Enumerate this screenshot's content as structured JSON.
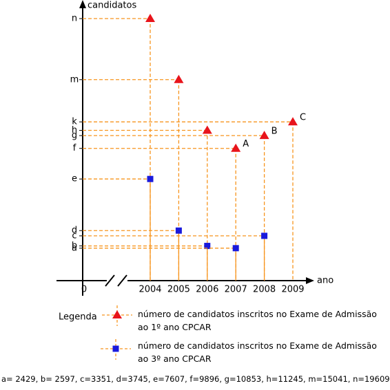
{
  "chart_data": {
    "type": "scatter",
    "y_label": "candidatos",
    "x_label": "ano",
    "origin_label": "0",
    "categories": [
      "2004",
      "2005",
      "2006",
      "2007",
      "2008",
      "2009"
    ],
    "ylim": [
      0,
      21000
    ],
    "yticks": [
      {
        "value": 2429,
        "label": "a"
      },
      {
        "value": 2597,
        "label": "b"
      },
      {
        "value": 3351,
        "label": "c"
      },
      {
        "value": 3745,
        "label": "d"
      },
      {
        "value": 7607,
        "label": "e"
      },
      {
        "value": 9896,
        "label": "f"
      },
      {
        "value": 10853,
        "label": "g"
      },
      {
        "value": 11245,
        "label": "h"
      },
      {
        "value": 11880,
        "label": "k"
      },
      {
        "value": 15041,
        "label": "m"
      },
      {
        "value": 19609,
        "label": "n"
      }
    ],
    "series": [
      {
        "name": "número de candidatos inscritos no Exame de Admissão ao 1º ano CPCAR",
        "marker": "triangle",
        "color": "#e8141b",
        "values": [
          19609,
          15041,
          11245,
          9896,
          10853,
          11880
        ]
      },
      {
        "name": "número de candidatos inscritos no Exame de Admissão ao 3º ano CPCAR",
        "marker": "square",
        "color": "#1a1adc",
        "values": [
          7607,
          3745,
          2597,
          2429,
          3351,
          null
        ]
      }
    ],
    "guide_color": "#f7941d",
    "annotations": [
      {
        "text": "A",
        "x": "2007"
      },
      {
        "text": "B",
        "x": "2008"
      },
      {
        "text": "C",
        "x": "2009"
      }
    ],
    "legend_title": "Legenda",
    "note": "a= 2429, b= 2597, c=3351, d=3745, e=7607, f=9896, g=10853, h=11245, m=15041, n=19609"
  }
}
